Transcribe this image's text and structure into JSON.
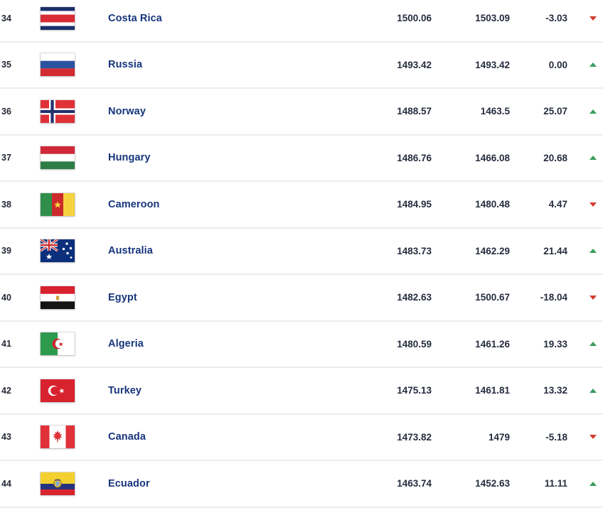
{
  "table": {
    "columns": [
      "rank",
      "flag",
      "country",
      "points",
      "previous_points",
      "change",
      "trend"
    ],
    "rows": [
      {
        "rank": "34",
        "country": "Costa Rica",
        "flag": "costa-rica",
        "points": "1500.06",
        "prev_points": "1503.09",
        "change": "-3.03",
        "trend": "down"
      },
      {
        "rank": "35",
        "country": "Russia",
        "flag": "russia",
        "points": "1493.42",
        "prev_points": "1493.42",
        "change": "0.00",
        "trend": "up"
      },
      {
        "rank": "36",
        "country": "Norway",
        "flag": "norway",
        "points": "1488.57",
        "prev_points": "1463.5",
        "change": "25.07",
        "trend": "up"
      },
      {
        "rank": "37",
        "country": "Hungary",
        "flag": "hungary",
        "points": "1486.76",
        "prev_points": "1466.08",
        "change": "20.68",
        "trend": "up"
      },
      {
        "rank": "38",
        "country": "Cameroon",
        "flag": "cameroon",
        "points": "1484.95",
        "prev_points": "1480.48",
        "change": "4.47",
        "trend": "down"
      },
      {
        "rank": "39",
        "country": "Australia",
        "flag": "australia",
        "points": "1483.73",
        "prev_points": "1462.29",
        "change": "21.44",
        "trend": "up"
      },
      {
        "rank": "40",
        "country": "Egypt",
        "flag": "egypt",
        "points": "1482.63",
        "prev_points": "1500.67",
        "change": "-18.04",
        "trend": "down"
      },
      {
        "rank": "41",
        "country": "Algeria",
        "flag": "algeria",
        "points": "1480.59",
        "prev_points": "1461.26",
        "change": "19.33",
        "trend": "up"
      },
      {
        "rank": "42",
        "country": "Turkey",
        "flag": "turkey",
        "points": "1475.13",
        "prev_points": "1461.81",
        "change": "13.32",
        "trend": "up"
      },
      {
        "rank": "43",
        "country": "Canada",
        "flag": "canada",
        "points": "1473.82",
        "prev_points": "1479",
        "change": "-5.18",
        "trend": "down"
      },
      {
        "rank": "44",
        "country": "Ecuador",
        "flag": "ecuador",
        "points": "1463.74",
        "prev_points": "1452.63",
        "change": "11.11",
        "trend": "up"
      }
    ]
  },
  "colors": {
    "trend_up": "#3a9c5f",
    "trend_down": "#cf3a2c",
    "country_text": "#17357c",
    "number_text": "#262c3e",
    "row_divider": "#ededef"
  }
}
